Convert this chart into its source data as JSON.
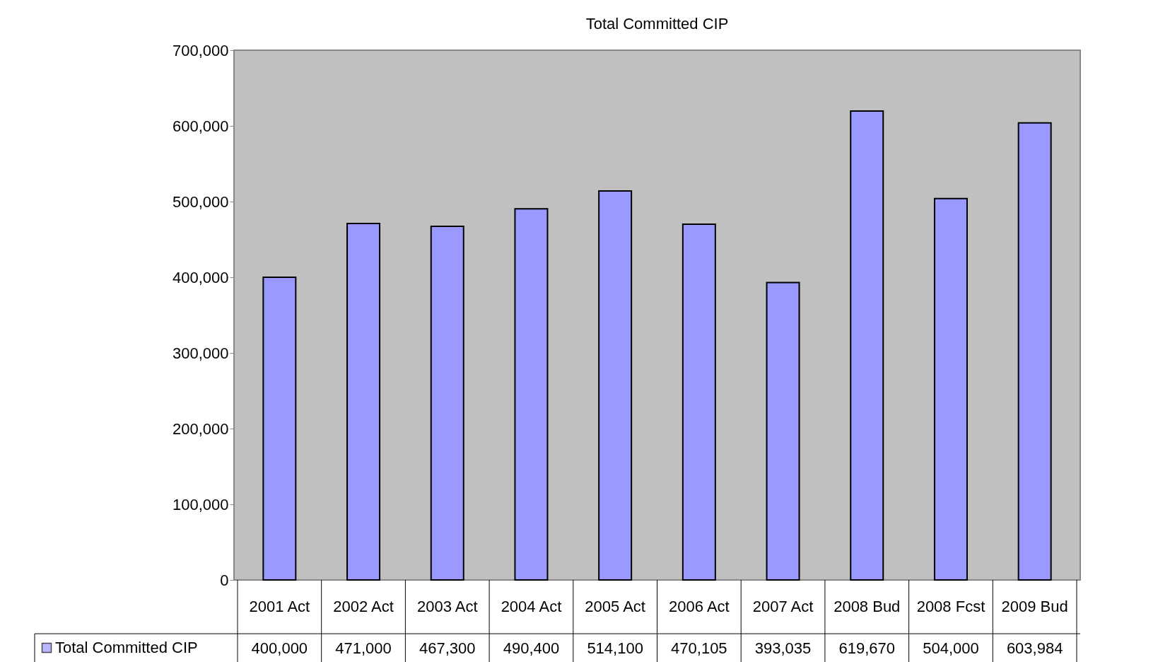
{
  "chart_data": {
    "type": "bar",
    "title": "Total Committed CIP",
    "categories": [
      "2001 Act",
      "2002 Act",
      "2003 Act",
      "2004 Act",
      "2005 Act",
      "2006 Act",
      "2007 Act",
      "2008 Bud",
      "2008 Fcst",
      "2009 Bud"
    ],
    "series": [
      {
        "name": "Total Committed CIP",
        "color": "#9999ff",
        "values": [
          400000,
          471000,
          467300,
          490400,
          514100,
          470105,
          393035,
          619670,
          504000,
          603984
        ],
        "value_labels": [
          "400,000",
          "471,000",
          "467,300",
          "490,400",
          "514,100",
          "470,105",
          "393,035",
          "619,670",
          "504,000",
          "603,984"
        ]
      }
    ],
    "ylim": [
      0,
      700000
    ],
    "yticks": [
      {
        "value": 0,
        "label": "0"
      },
      {
        "value": 100000,
        "label": "100,000"
      },
      {
        "value": 200000,
        "label": "200,000"
      },
      {
        "value": 300000,
        "label": "300,000"
      },
      {
        "value": 400000,
        "label": "400,000"
      },
      {
        "value": 500000,
        "label": "500,000"
      },
      {
        "value": 600000,
        "label": "600,000"
      },
      {
        "value": 700000,
        "label": "700,000"
      }
    ],
    "grid": false,
    "legend": "bottom left"
  }
}
